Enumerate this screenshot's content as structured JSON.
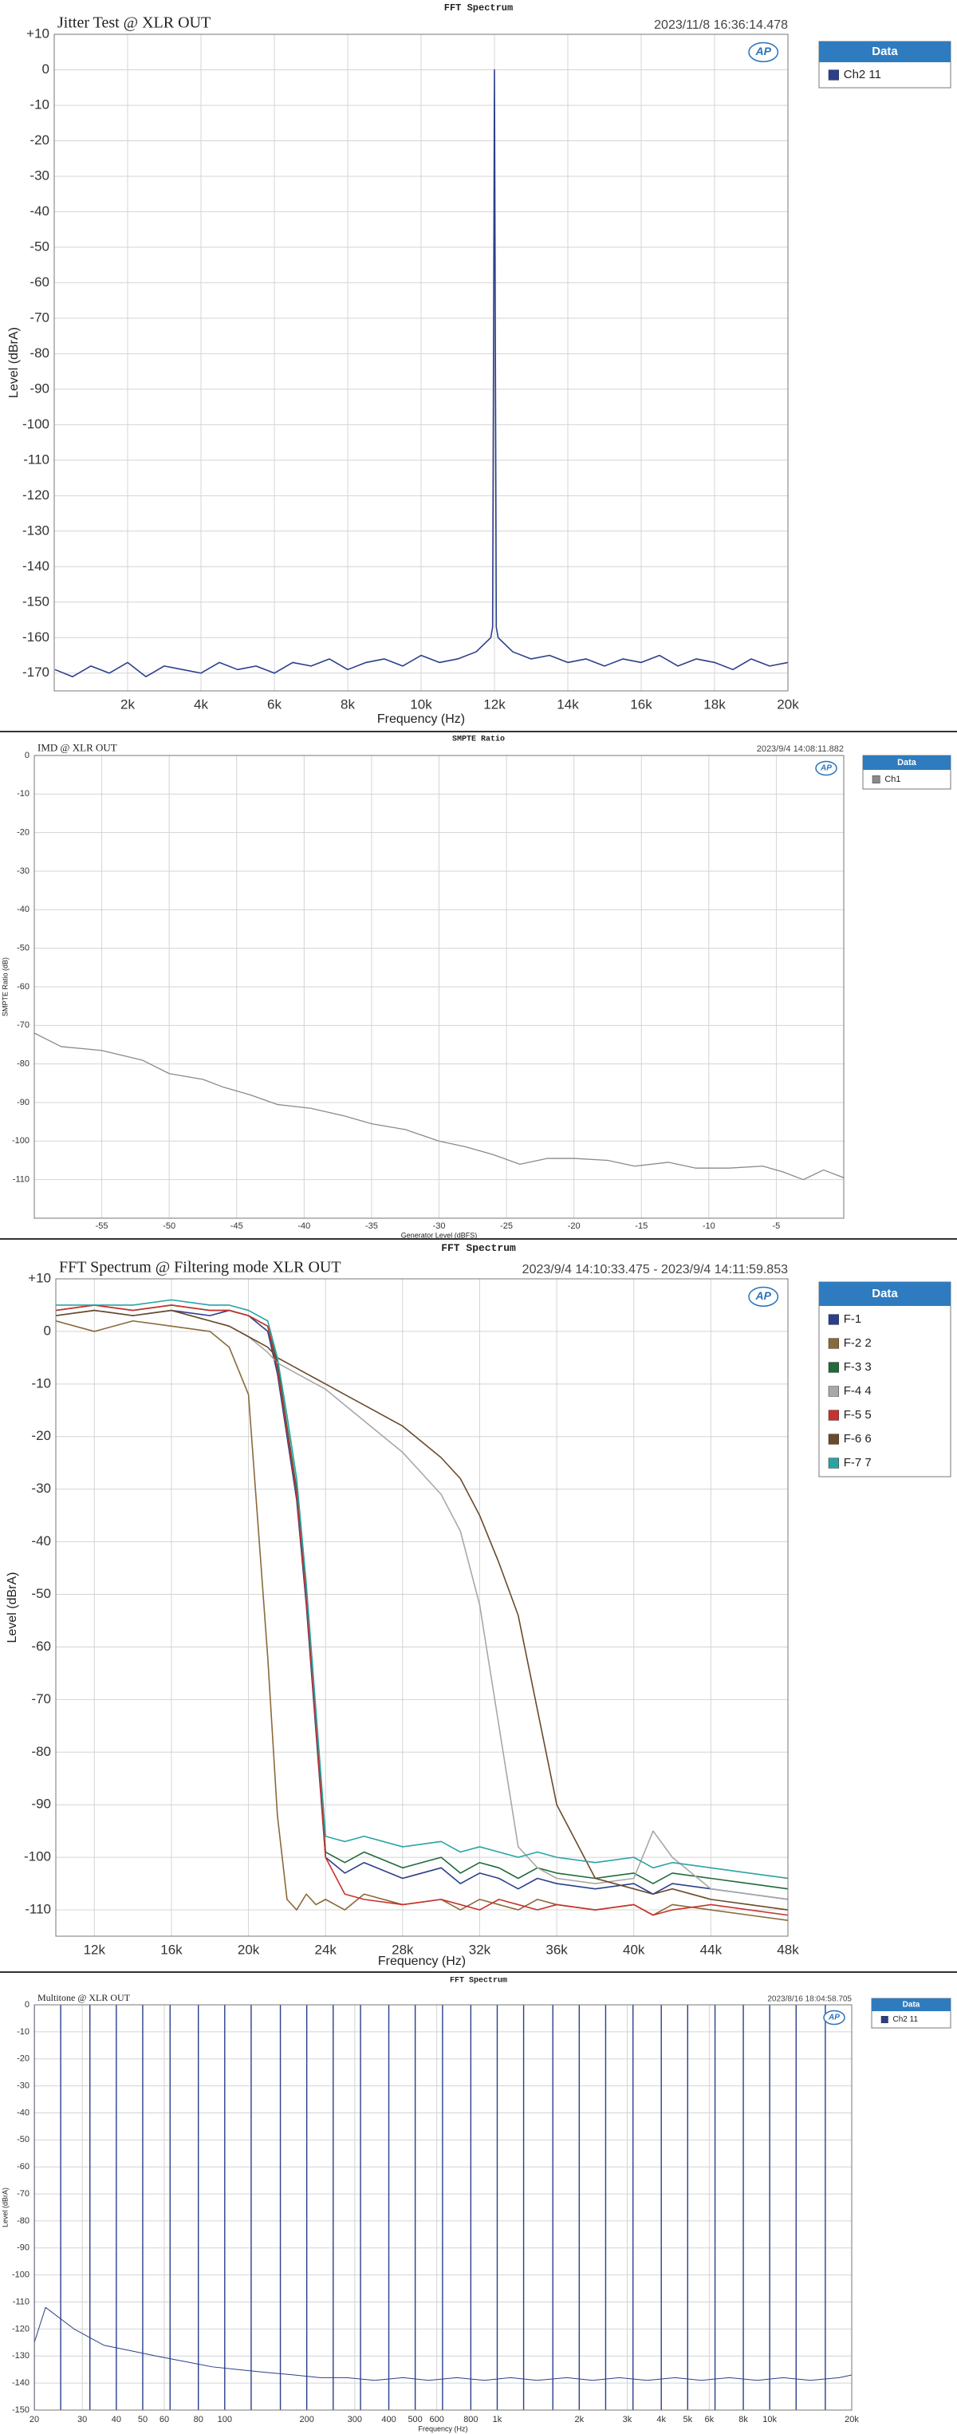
{
  "chart_data": [
    {
      "type": "line",
      "title": "FFT Spectrum",
      "subtitle": "Jitter Test @ XLR OUT",
      "timestamp": "2023/11/8 16:36:14.478",
      "logo": "AP",
      "legend_title": "Data",
      "xlabel": "Frequency (Hz)",
      "ylabel": "Level (dBrA)",
      "grid": true,
      "xlim": [
        0,
        20000
      ],
      "ylim": [
        -175,
        10
      ],
      "xticks": [
        {
          "value": 2000,
          "label": "2k"
        },
        {
          "value": 4000,
          "label": "4k"
        },
        {
          "value": 6000,
          "label": "6k"
        },
        {
          "value": 8000,
          "label": "8k"
        },
        {
          "value": 10000,
          "label": "10k"
        },
        {
          "value": 12000,
          "label": "12k"
        },
        {
          "value": 14000,
          "label": "14k"
        },
        {
          "value": 16000,
          "label": "16k"
        },
        {
          "value": 18000,
          "label": "18k"
        },
        {
          "value": 20000,
          "label": "20k"
        }
      ],
      "yticks": [
        {
          "value": 10,
          "label": "+10"
        },
        0,
        -10,
        -20,
        -30,
        -40,
        -50,
        -60,
        -70,
        -80,
        -90,
        -100,
        -110,
        -120,
        -130,
        -140,
        -150,
        -160,
        -170
      ],
      "x": [
        20,
        500,
        1000,
        1500,
        2000,
        2500,
        3000,
        3500,
        4000,
        4500,
        5000,
        5500,
        6000,
        6500,
        7000,
        7500,
        8000,
        8500,
        9000,
        9500,
        10000,
        10500,
        11000,
        11500,
        11900,
        11950,
        12000,
        12050,
        12100,
        12500,
        13000,
        13500,
        14000,
        14500,
        15000,
        15500,
        16000,
        16500,
        17000,
        17500,
        18000,
        18500,
        19000,
        19500,
        20000
      ],
      "series": [
        {
          "name": "Ch2 11",
          "color": "#2b3f8c",
          "values": [
            -169,
            -171,
            -168,
            -170,
            -167,
            -171,
            -168,
            -169,
            -170,
            -167,
            -169,
            -168,
            -170,
            -167,
            -168,
            -166,
            -169,
            -167,
            -166,
            -168,
            -165,
            -167,
            -166,
            -164,
            -160,
            -157,
            0,
            -157,
            -160,
            -164,
            -166,
            -165,
            -167,
            -166,
            -168,
            -166,
            -167,
            -165,
            -168,
            -166,
            -167,
            -169,
            -166,
            -168,
            -167
          ]
        }
      ]
    },
    {
      "type": "line",
      "title": "SMPTE Ratio",
      "subtitle": "IMD @ XLR OUT",
      "timestamp": "2023/9/4 14:08:11.882",
      "logo": "AP",
      "legend_title": "Data",
      "xlabel": "Generator Level (dBFS)",
      "ylabel": "SMPTE Ratio (dB)",
      "grid": true,
      "xlim": [
        -60,
        0
      ],
      "ylim": [
        -120,
        0
      ],
      "xticks": [
        -55,
        -50,
        -45,
        -40,
        -35,
        -30,
        -25,
        -20,
        -15,
        -10,
        -5
      ],
      "yticks": [
        0,
        -10,
        -20,
        -30,
        -40,
        -50,
        -60,
        -70,
        -80,
        -90,
        -100,
        -110
      ],
      "x": [
        -60,
        -58,
        -55,
        -52,
        -50,
        -47.5,
        -46,
        -44,
        -42,
        -39.5,
        -37,
        -35,
        -32.5,
        -30,
        -28,
        -26,
        -24,
        -22,
        -20,
        -17.5,
        -15.5,
        -13,
        -11,
        -8.5,
        -6,
        -4.5,
        -3,
        -1.5,
        0
      ],
      "series": [
        {
          "name": "Ch1",
          "color": "#8a8a8a",
          "values": [
            -72,
            -75.5,
            -76.5,
            -79,
            -82.5,
            -84,
            -86,
            -88,
            -90.5,
            -91.5,
            -93.5,
            -95.5,
            -97,
            -100,
            -101.5,
            -103.5,
            -106,
            -104.5,
            -104.5,
            -105,
            -106.5,
            -105.5,
            -107,
            -107,
            -106.5,
            -108,
            -110,
            -107.5,
            -109.5
          ]
        }
      ]
    },
    {
      "type": "line",
      "title": "FFT Spectrum",
      "subtitle": "FFT Spectrum @ Filtering mode XLR OUT",
      "timestamp": "2023/9/4 14:10:33.475 - 2023/9/4 14:11:59.853",
      "logo": "AP",
      "legend_title": "Data",
      "xlabel": "Frequency (Hz)",
      "ylabel": "Level (dBrA)",
      "grid": true,
      "xlim": [
        10000,
        48000
      ],
      "ylim": [
        -115,
        10
      ],
      "xticks": [
        {
          "value": 12000,
          "label": "12k"
        },
        {
          "value": 16000,
          "label": "16k"
        },
        {
          "value": 20000,
          "label": "20k"
        },
        {
          "value": 24000,
          "label": "24k"
        },
        {
          "value": 28000,
          "label": "28k"
        },
        {
          "value": 32000,
          "label": "32k"
        },
        {
          "value": 36000,
          "label": "36k"
        },
        {
          "value": 40000,
          "label": "40k"
        },
        {
          "value": 44000,
          "label": "44k"
        },
        {
          "value": 48000,
          "label": "48k"
        }
      ],
      "yticks": [
        {
          "value": 10,
          "label": "+10"
        },
        0,
        -10,
        -20,
        -30,
        -40,
        -50,
        -60,
        -70,
        -80,
        -90,
        -100,
        -110
      ],
      "x": [
        10000,
        12000,
        14000,
        16000,
        18000,
        19000,
        20000,
        21000,
        21500,
        22000,
        22500,
        23000,
        23500,
        24000,
        25000,
        26000,
        28000,
        30000,
        31000,
        32000,
        33000,
        34000,
        35000,
        36000,
        38000,
        40000,
        41000,
        42000,
        44000,
        46000,
        48000
      ],
      "series": [
        {
          "name": "F-1",
          "color": "#2b3f8c",
          "values": [
            3,
            4,
            3,
            4,
            3,
            4,
            3,
            0,
            -8,
            -20,
            -32,
            -52,
            -76,
            -100,
            -103,
            -101,
            -104,
            -102,
            -105,
            -103,
            -104,
            -106,
            -104,
            -105,
            -106,
            -105,
            -107,
            -105,
            -106,
            -107,
            -108
          ]
        },
        {
          "name": "F-2 2",
          "color": "#8a6a3a",
          "values": [
            2,
            0,
            2,
            1,
            0,
            -3,
            -12,
            -62,
            -92,
            -108,
            -110,
            -107,
            -109,
            -108,
            -110,
            -107,
            -109,
            -108,
            -110,
            -108,
            -109,
            -110,
            -108,
            -109,
            -110,
            -109,
            -111,
            -109,
            -110,
            -111,
            -112
          ]
        },
        {
          "name": "F-3 3",
          "color": "#1f6b3a",
          "values": [
            4,
            5,
            4,
            5,
            4,
            4,
            3,
            1,
            -6,
            -18,
            -30,
            -50,
            -74,
            -99,
            -101,
            -99,
            -102,
            -100,
            -103,
            -101,
            -102,
            -104,
            -102,
            -103,
            -104,
            -103,
            -105,
            -103,
            -104,
            -105,
            -106
          ]
        },
        {
          "name": "F-4 4",
          "color": "#a8a8a8",
          "values": [
            3,
            4,
            3,
            4,
            2,
            1,
            -1,
            -4,
            -6,
            -7,
            -8,
            -9,
            -10,
            -11,
            -14,
            -17,
            -23,
            -31,
            -38,
            -52,
            -75,
            -98,
            -102,
            -104,
            -105,
            -104,
            -95,
            -100,
            -106,
            -107,
            -108
          ]
        },
        {
          "name": "F-5 5",
          "color": "#c8322c",
          "values": [
            4,
            5,
            4,
            5,
            4,
            4,
            3,
            1,
            -7,
            -19,
            -31,
            -51,
            -75,
            -100,
            -107,
            -108,
            -109,
            -108,
            -109,
            -110,
            -108,
            -109,
            -110,
            -109,
            -110,
            -109,
            -111,
            -110,
            -109,
            -110,
            -111
          ]
        },
        {
          "name": "F-6 6",
          "color": "#6b4a2a",
          "values": [
            3,
            4,
            3,
            4,
            2,
            1,
            -1,
            -3,
            -5,
            -6,
            -7,
            -8,
            -9,
            -10,
            -12,
            -14,
            -18,
            -24,
            -28,
            -35,
            -44,
            -54,
            -72,
            -90,
            -104,
            -106,
            -107,
            -106,
            -108,
            -109,
            -110
          ]
        },
        {
          "name": "F-7 7",
          "color": "#2aa3a3",
          "values": [
            5,
            5,
            5,
            6,
            5,
            5,
            4,
            2,
            -5,
            -16,
            -28,
            -48,
            -72,
            -96,
            -97,
            -96,
            -98,
            -97,
            -99,
            -98,
            -99,
            -100,
            -99,
            -100,
            -101,
            -100,
            -102,
            -101,
            -102,
            -103,
            -104
          ]
        }
      ]
    },
    {
      "type": "multitone",
      "title": "FFT Spectrum",
      "subtitle": "Multitone @ XLR OUT",
      "timestamp": "2023/8/16 18:04:58.705",
      "logo": "AP",
      "legend_title": "Data",
      "xlabel": "Frequency (Hz)",
      "ylabel": "Level (dBrA)",
      "grid": true,
      "xscale": "log",
      "xlim": [
        20,
        20000
      ],
      "ylim": [
        -150,
        0
      ],
      "xticks": [
        20,
        30,
        40,
        50,
        60,
        80,
        100,
        200,
        300,
        400,
        500,
        600,
        800,
        {
          "value": 1000,
          "label": "1k"
        },
        {
          "value": 2000,
          "label": "2k"
        },
        {
          "value": 3000,
          "label": "3k"
        },
        {
          "value": 4000,
          "label": "4k"
        },
        {
          "value": 5000,
          "label": "5k"
        },
        {
          "value": 6000,
          "label": "6k"
        },
        {
          "value": 8000,
          "label": "8k"
        },
        {
          "value": 10000,
          "label": "10k"
        },
        {
          "value": 20000,
          "label": "20k"
        }
      ],
      "yticks": [
        0,
        -10,
        -20,
        -30,
        -40,
        -50,
        -60,
        -70,
        -80,
        -90,
        -100,
        -110,
        -120,
        -130,
        -140,
        -150
      ],
      "series": [
        {
          "name": "Ch2 11",
          "color": "#2b3f8c",
          "x": [
            20,
            25,
            32,
            40,
            50,
            63,
            80,
            100,
            125,
            160,
            200,
            250,
            315,
            400,
            500,
            630,
            800,
            1000,
            1250,
            1600,
            2000,
            2500,
            3150,
            4000,
            5000,
            6300,
            8000,
            10000,
            12500,
            16000
          ],
          "values": [
            0,
            0,
            0,
            0,
            0,
            0,
            0,
            0,
            0,
            0,
            0,
            0,
            0,
            0,
            0,
            0,
            0,
            0,
            0,
            0,
            0,
            0,
            0,
            0,
            0,
            0,
            0,
            0,
            0,
            0
          ],
          "noise_x": [
            20,
            22,
            28,
            36,
            45,
            56,
            71,
            90,
            112,
            140,
            180,
            224,
            280,
            355,
            450,
            560,
            710,
            900,
            1120,
            1400,
            1800,
            2240,
            2800,
            3550,
            4500,
            5600,
            7100,
            9000,
            11200,
            14100,
            18000,
            20000
          ],
          "noise_values": [
            -125,
            -112,
            -120,
            -126,
            -128,
            -130,
            -132,
            -134,
            -135,
            -136,
            -137,
            -138,
            -138,
            -139,
            -138,
            -139,
            -138,
            -139,
            -138,
            -139,
            -138,
            -139,
            -138,
            -139,
            -138,
            -139,
            -138,
            -139,
            -138,
            -139,
            -138,
            -137
          ]
        }
      ]
    }
  ]
}
